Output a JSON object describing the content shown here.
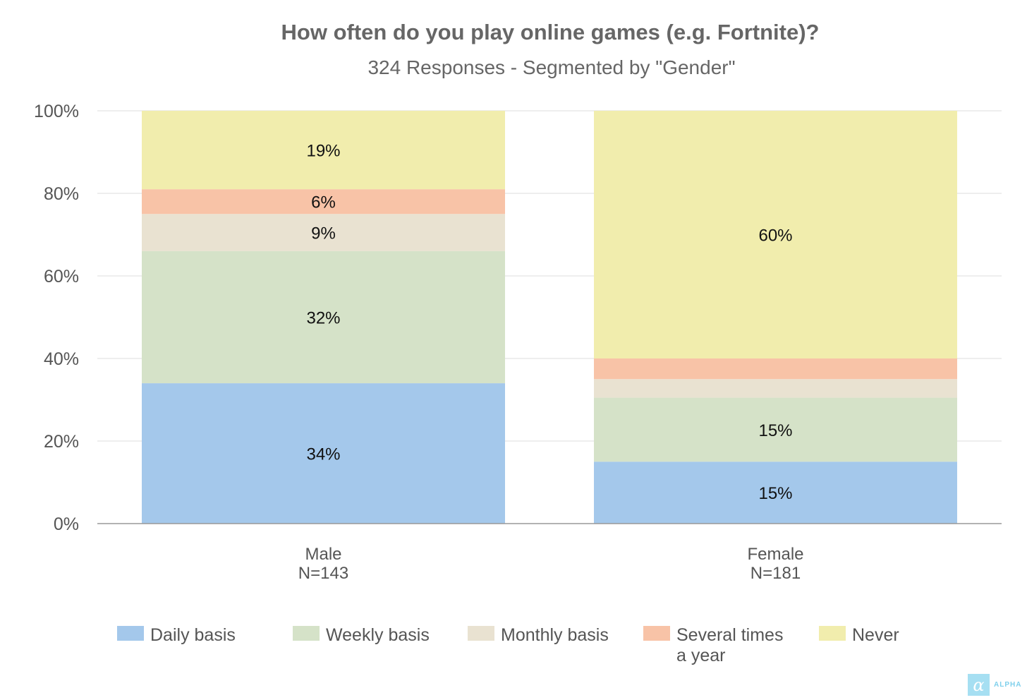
{
  "chart_data": {
    "type": "bar",
    "stacked": true,
    "title": "How often do you play online games (e.g. Fortnite)?",
    "subtitle": "324 Responses - Segmented by \"Gender\"",
    "categories": [
      "Male",
      "Female"
    ],
    "category_sublabels": [
      "N=143",
      "N=181"
    ],
    "ylim": [
      0,
      100
    ],
    "yticks": [
      "0%",
      "20%",
      "40%",
      "60%",
      "80%",
      "100%"
    ],
    "grid": true,
    "legend_position": "bottom",
    "series": [
      {
        "name": "Daily basis",
        "color": "#a4c8eb",
        "values": [
          34,
          15
        ],
        "labels": [
          "34%",
          "15%"
        ]
      },
      {
        "name": "Weekly basis",
        "color": "#d5e2c8",
        "values": [
          32,
          15.5
        ],
        "labels": [
          "32%",
          "15%"
        ]
      },
      {
        "name": "Monthly basis",
        "color": "#e9e2d1",
        "values": [
          9,
          4.5
        ],
        "labels": [
          "9%",
          ""
        ]
      },
      {
        "name": "Several times\na year",
        "color": "#f8c3a7",
        "values": [
          6,
          5
        ],
        "labels": [
          "6%",
          ""
        ]
      },
      {
        "name": "Never",
        "color": "#f1edad",
        "values": [
          19,
          60
        ],
        "labels": [
          "19%",
          "60%"
        ]
      }
    ]
  },
  "logo": {
    "mark": "α",
    "text": "ALPHA"
  }
}
